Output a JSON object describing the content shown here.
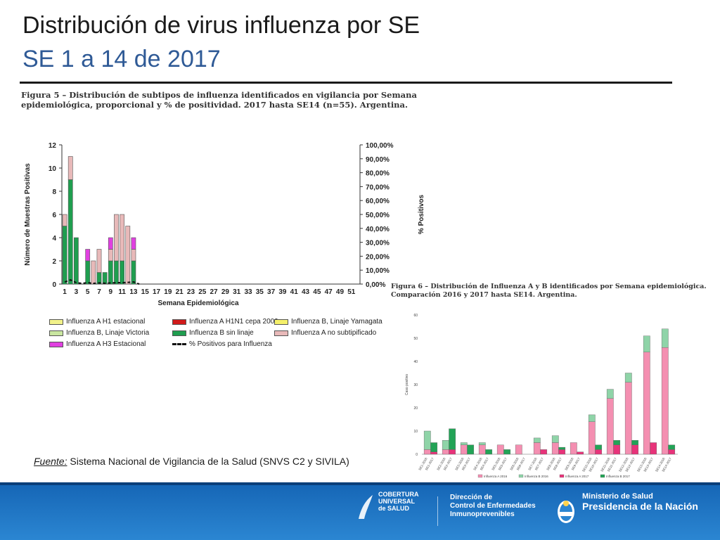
{
  "slide": {
    "title": "Distribución de virus influenza por SE",
    "subtitle": "SE 1 a 14 de 2017",
    "fig5_caption": "Figura 5 – Distribución de subtipos de influenza identificados en vigilancia por Semana epidemiológica, proporcional y % de positividad. 2017 hasta SE14 (n=55). Argentina.",
    "fig6_caption": "Figura 6 – Distribución de Influenza A y B identificados por Semana epidemiológica. Comparación 2016 y 2017 hasta SE14. Argentina.",
    "source_label": "Fuente:",
    "source_text": " Sistema Nacional de Vigilancia de la Salud (SNVS C2 y SIVILA)"
  },
  "footer": {
    "cobertura": [
      "COBERTURA",
      "UNIVERSAL",
      "de SALUD"
    ],
    "direccion": [
      "Dirección de",
      "Control de Enfermedades",
      "Inmunoprevenibles"
    ],
    "ministerio_l1": "Ministerio de Salud",
    "ministerio_l2": "Presidencia de la Nación"
  },
  "colors": {
    "green": "#1f9e4f",
    "pink_light": "#e8b9b9",
    "magenta": "#e040e0",
    "fig6_a2016": "#f48fb1",
    "fig6_b2016": "#8fd4a8",
    "fig6_a2017": "#e8337a",
    "fig6_b2017": "#22a356",
    "footer_blue": "#1f74c4"
  },
  "chart_data": [
    {
      "type": "bar",
      "stacked": true,
      "ylabel": "Número de Muestras Positivas",
      "y2label": "% Positivos",
      "xlabel": "Semana Epidemiológica",
      "ylim": [
        0,
        12
      ],
      "yticks": [
        "0",
        "2",
        "4",
        "6",
        "8",
        "10",
        "12"
      ],
      "y2ticks": [
        "0,00%",
        "10,00%",
        "20,00%",
        "30,00%",
        "40,00%",
        "50,00%",
        "60,00%",
        "70,00%",
        "80,00%",
        "90,00%",
        "100,00%"
      ],
      "xtick_labels": [
        "1",
        "3",
        "5",
        "7",
        "9",
        "11",
        "13",
        "15",
        "17",
        "19",
        "21",
        "23",
        "25",
        "27",
        "29",
        "31",
        "33",
        "35",
        "37",
        "39",
        "41",
        "43",
        "45",
        "47",
        "49",
        "51"
      ],
      "weeks": 52,
      "legend": [
        {
          "label": "Influenza A H1 estacional",
          "color": "#f2f28a"
        },
        {
          "label": "Influenza A H1N1 cepa 2009",
          "color": "#d11b1b"
        },
        {
          "label": "Influenza B, Linaje Yamagata",
          "color": "#f5f06a"
        },
        {
          "label": "Influenza B, Linaje Victoria",
          "color": "#c9e6a0"
        },
        {
          "label": "Influenza B sin linaje",
          "color": "#1f9e4f"
        },
        {
          "label": "Influenza A no subtipificado",
          "color": "#e8b9b9"
        },
        {
          "label": "Influenza A H3 Estacional",
          "color": "#e040e0"
        },
        {
          "label": "% Positivos para Influenza",
          "color": "#111111",
          "style": "dashed-line"
        }
      ],
      "series": [
        {
          "name": "Influenza B sin linaje",
          "color": "#1f9e4f",
          "values": [
            5,
            9,
            4,
            0,
            2,
            0,
            1,
            1,
            2,
            2,
            2,
            0,
            2,
            0
          ]
        },
        {
          "name": "Influenza A no subtipificado",
          "color": "#e8b9b9",
          "values": [
            1,
            2,
            0,
            0,
            0,
            2,
            2,
            0,
            1,
            4,
            4,
            5,
            1,
            0
          ]
        },
        {
          "name": "Influenza A H3 Estacional",
          "color": "#e040e0",
          "values": [
            0,
            0,
            0,
            0,
            1,
            0,
            0,
            0,
            1,
            0,
            0,
            0,
            1,
            0
          ]
        }
      ],
      "percent_positive": [
        1.5,
        3,
        1,
        0.5,
        1,
        0.5,
        0.8,
        0.6,
        0.8,
        1,
        1,
        1.2,
        1.5,
        0
      ]
    },
    {
      "type": "bar",
      "stacked": true,
      "ylabel": "Caso positivo",
      "ylim": [
        0,
        60
      ],
      "yticks": [
        "0",
        "10",
        "20",
        "30",
        "40",
        "50",
        "60"
      ],
      "categories": [
        "SE1-2016",
        "SE1-2017",
        "SE2-2016",
        "SE2-2017",
        "SE3-2016",
        "SE3-2017",
        "SE4-2016",
        "SE4-2017",
        "SE5-2016",
        "SE5-2017",
        "SE6-2016",
        "SE6-2017",
        "SE7-2016",
        "SE7-2017",
        "SE8-2016",
        "SE8-2017",
        "SE9-2016",
        "SE9-2017",
        "SE10-2016",
        "SE10-2017",
        "SE11-2016",
        "SE11-2017",
        "SE12-2016",
        "SE12-2017",
        "SE13-2016",
        "SE13-2017",
        "SE14-2016",
        "SE14-2017"
      ],
      "legend": [
        {
          "label": "Influenza A 2016",
          "color": "#f48fb1"
        },
        {
          "label": "Influenza B 2016",
          "color": "#8fd4a8"
        },
        {
          "label": "Influenza A 2017",
          "color": "#e8337a"
        },
        {
          "label": "Influenza B 2017",
          "color": "#22a356"
        }
      ],
      "series": [
        {
          "name": "Influenza A",
          "values": [
            2,
            1,
            2,
            2,
            4,
            0,
            4,
            0,
            4,
            0,
            4,
            0,
            5,
            2,
            5,
            2,
            5,
            1,
            14,
            2,
            24,
            4,
            31,
            4,
            44,
            5,
            46,
            2
          ]
        },
        {
          "name": "Influenza B",
          "values": [
            8,
            4,
            4,
            9,
            1,
            4,
            1,
            2,
            0,
            2,
            0,
            0,
            2,
            0,
            3,
            1,
            0,
            0,
            3,
            2,
            4,
            2,
            4,
            2,
            7,
            0,
            8,
            2
          ]
        }
      ]
    }
  ]
}
